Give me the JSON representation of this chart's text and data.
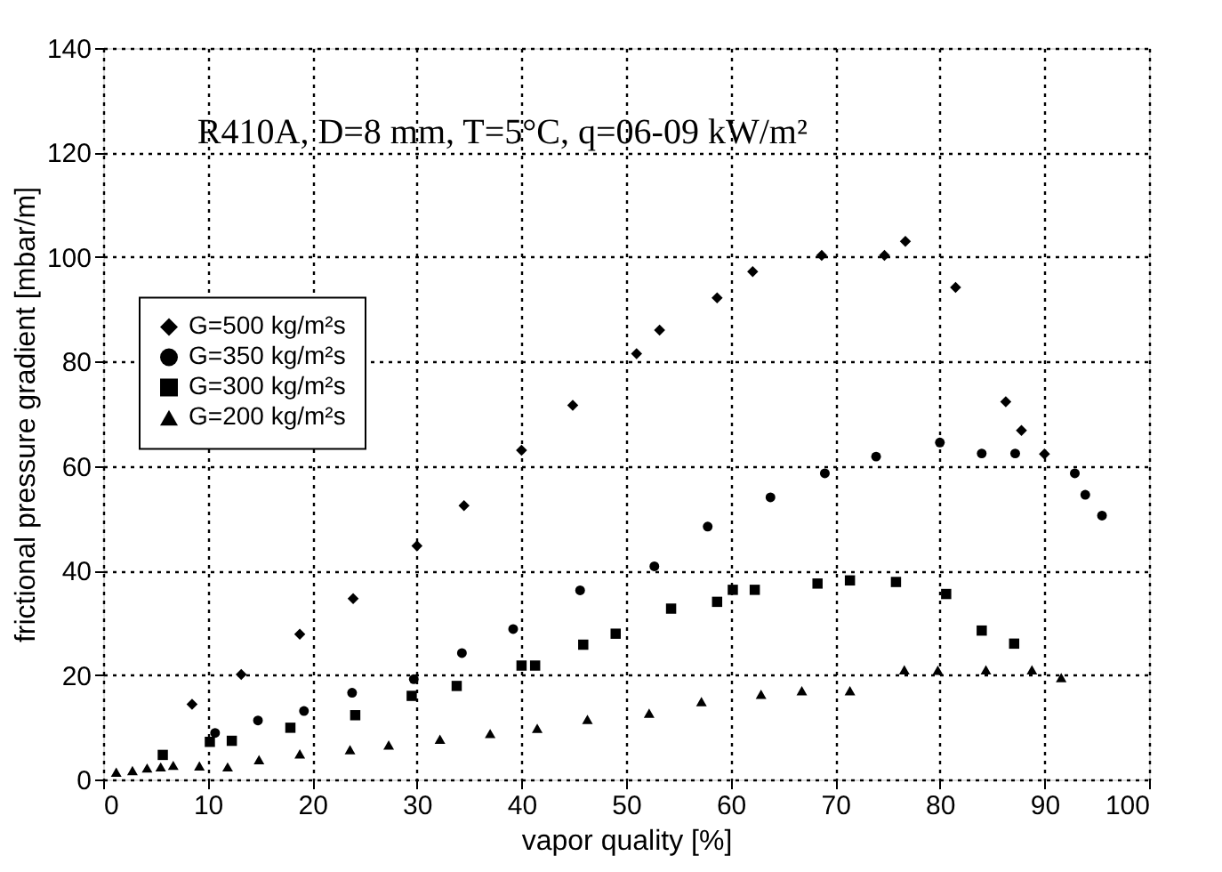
{
  "chart_data": {
    "type": "scatter",
    "xlabel": "vapor quality [%]",
    "ylabel": "frictional pressure gradient [mbar/m]",
    "annotations": [
      "R410A, D=8 mm, T=5°C, q=06-09 kW/m²"
    ],
    "xlim": [
      0,
      100
    ],
    "xticks": [
      0,
      10,
      20,
      30,
      40,
      50,
      60,
      70,
      80,
      90,
      100
    ],
    "ylim": [
      0,
      140
    ],
    "yticks": [
      0,
      20,
      40,
      60,
      80,
      100,
      120,
      140
    ],
    "grid": true,
    "legend": "left",
    "series": [
      {
        "name": "G=500 kg/m²s",
        "color": "#000000",
        "marker": "diamond",
        "x": [
          8.5,
          13.2,
          18.8,
          23.9,
          30,
          34.5,
          40,
          44.9,
          51,
          53.2,
          58.7,
          62.1,
          68.7,
          74.7,
          76.7,
          81.5,
          86.3,
          87.8,
          90
        ],
        "values": [
          14.4,
          20.1,
          27.8,
          34.6,
          44.7,
          52.4,
          63,
          71.6,
          81.5,
          86,
          92.2,
          97.2,
          100.3,
          100.3,
          103,
          94.2,
          72.3,
          66.8,
          62.3
        ]
      },
      {
        "name": "G=350 kg/m²s",
        "color": "#000000",
        "marker": "circle",
        "x": [
          10.7,
          14.8,
          19.2,
          23.8,
          29.7,
          34.3,
          39.2,
          45.6,
          52.7,
          57.8,
          63.8,
          69,
          73.9,
          80,
          84,
          87.2,
          92.9,
          93.9,
          95.5
        ],
        "values": [
          8.9,
          11.3,
          13.1,
          16.6,
          19.2,
          24.2,
          28.8,
          36.2,
          40.8,
          48.4,
          54,
          58.6,
          61.8,
          64.5,
          62.4,
          62.4,
          58.6,
          54.5,
          50.5
        ]
      },
      {
        "name": "G=300 kg/m²s",
        "color": "#000000",
        "marker": "square",
        "x": [
          5.7,
          10.2,
          12.3,
          17.9,
          24.1,
          29.5,
          33.8,
          40,
          41.3,
          45.9,
          49,
          54.3,
          58.7,
          60.2,
          62.3,
          68.3,
          71.4,
          75.8,
          80.6,
          84,
          87.1
        ],
        "values": [
          4.7,
          7.2,
          7.4,
          9.9,
          12.3,
          16,
          17.9,
          21.8,
          21.8,
          25.8,
          27.9,
          32.7,
          34,
          36.3,
          36.3,
          37.5,
          38.1,
          37.8,
          35.5,
          28.5,
          26
        ]
      },
      {
        "name": "G=200 kg/m²s",
        "color": "#000000",
        "marker": "triangle",
        "x": [
          1.25,
          2.8,
          4.2,
          5.5,
          6.7,
          9.2,
          11.9,
          14.9,
          18.8,
          23.6,
          27.3,
          32.2,
          37,
          41.5,
          46.3,
          52.2,
          57.2,
          62.9,
          66.8,
          71.4,
          76.6,
          79.8,
          84.4,
          88.8,
          91.6
        ],
        "values": [
          1.4,
          1.7,
          2.2,
          2.4,
          2.7,
          2.6,
          2.4,
          3.8,
          4.9,
          5.7,
          6.6,
          7.7,
          8.8,
          9.8,
          11.5,
          12.7,
          14.9,
          16.3,
          17,
          17,
          21,
          20.9,
          21,
          21,
          19.5
        ]
      }
    ]
  }
}
